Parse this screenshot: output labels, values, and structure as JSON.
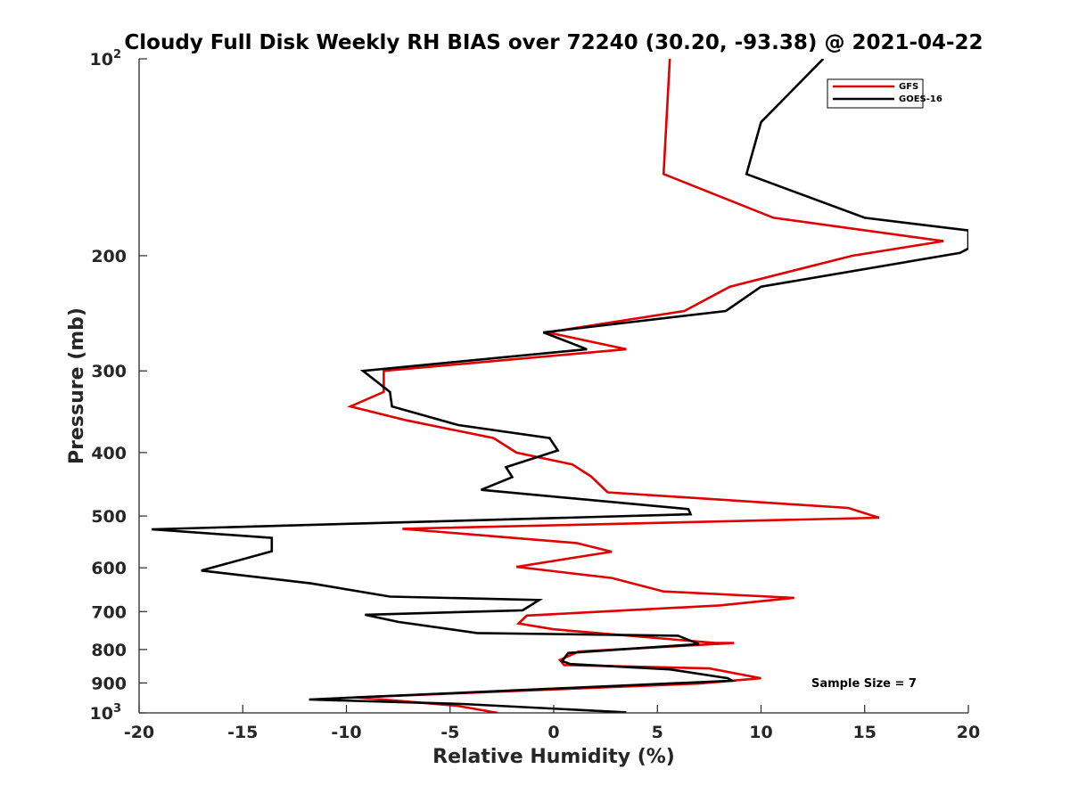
{
  "chart_data": {
    "type": "line",
    "title": "Cloudy Full Disk Weekly RH BIAS over 72240 (30.20, -93.38) @ 2021-04-22",
    "xlabel": "Relative Humidity (%)",
    "ylabel": "Pressure (mb)",
    "xlim": [
      -20,
      20
    ],
    "ylim": [
      100,
      1000
    ],
    "yscale": "log",
    "x_ticks": [
      "-20",
      "-15",
      "-10",
      "-5",
      "0",
      "5",
      "10",
      "15",
      "20"
    ],
    "y_ticks": [
      {
        "value": 100,
        "label": "10",
        "sup": "2"
      },
      {
        "value": 200,
        "label": "200",
        "sup": ""
      },
      {
        "value": 300,
        "label": "300",
        "sup": ""
      },
      {
        "value": 400,
        "label": "400",
        "sup": ""
      },
      {
        "value": 500,
        "label": "500",
        "sup": ""
      },
      {
        "value": 600,
        "label": "600",
        "sup": ""
      },
      {
        "value": 700,
        "label": "700",
        "sup": ""
      },
      {
        "value": 800,
        "label": "800",
        "sup": ""
      },
      {
        "value": 900,
        "label": "900",
        "sup": ""
      },
      {
        "value": 1000,
        "label": "10",
        "sup": "3"
      }
    ],
    "legend_position": "top-right",
    "annotation": "Sample Size = 7",
    "series": [
      {
        "name": "GFS",
        "color": "#e00000",
        "points": [
          [
            5.6,
            100
          ],
          [
            5.3,
            150
          ],
          [
            10.6,
            175
          ],
          [
            18.8,
            190
          ],
          [
            14.4,
            200
          ],
          [
            8.5,
            223
          ],
          [
            6.3,
            243
          ],
          [
            -0.3,
            262
          ],
          [
            3.5,
            278
          ],
          [
            -8.2,
            300
          ],
          [
            -8.2,
            323
          ],
          [
            -9.8,
            340
          ],
          [
            -7.1,
            357
          ],
          [
            -2.9,
            380
          ],
          [
            -1.8,
            400
          ],
          [
            0.9,
            417
          ],
          [
            1.8,
            435
          ],
          [
            2.6,
            460
          ],
          [
            14.2,
            486
          ],
          [
            15.7,
            503
          ],
          [
            -7.3,
            523
          ],
          [
            1.1,
            550
          ],
          [
            2.8,
            567
          ],
          [
            -1.8,
            598
          ],
          [
            2.8,
            622
          ],
          [
            5.3,
            652
          ],
          [
            11.6,
            667
          ],
          [
            8.0,
            685
          ],
          [
            -1.3,
            710
          ],
          [
            -1.7,
            730
          ],
          [
            0.0,
            745
          ],
          [
            7.8,
            782
          ],
          [
            8.7,
            782
          ],
          [
            1.2,
            806
          ],
          [
            0.3,
            830
          ],
          [
            0.5,
            845
          ],
          [
            7.5,
            855
          ],
          [
            10.0,
            885
          ],
          [
            7.0,
            902
          ],
          [
            -9.5,
            947
          ],
          [
            -4.7,
            975
          ],
          [
            -2.7,
            1000
          ]
        ]
      },
      {
        "name": "GOES-16",
        "color": "#000000",
        "points": [
          [
            13.0,
            100
          ],
          [
            10.0,
            125
          ],
          [
            9.3,
            150
          ],
          [
            15.0,
            175
          ],
          [
            20.0,
            183
          ],
          [
            20.0,
            195
          ],
          [
            19.6,
            198
          ],
          [
            10.0,
            223
          ],
          [
            8.3,
            243
          ],
          [
            -0.5,
            262
          ],
          [
            1.6,
            278
          ],
          [
            -9.2,
            300
          ],
          [
            -7.9,
            323
          ],
          [
            -7.8,
            340
          ],
          [
            -4.6,
            363
          ],
          [
            -0.2,
            380
          ],
          [
            0.2,
            397
          ],
          [
            -2.3,
            421
          ],
          [
            -2.0,
            436
          ],
          [
            -3.5,
            456
          ],
          [
            6.5,
            488
          ],
          [
            6.6,
            497
          ],
          [
            -19.4,
            524
          ],
          [
            -13.6,
            540
          ],
          [
            -13.6,
            566
          ],
          [
            -17.0,
            606
          ],
          [
            -11.7,
            634
          ],
          [
            -7.9,
            664
          ],
          [
            -0.7,
            672
          ],
          [
            -1.5,
            697
          ],
          [
            -9.1,
            708
          ],
          [
            -7.5,
            726
          ],
          [
            -3.7,
            755
          ],
          [
            6.0,
            762
          ],
          [
            7.0,
            785
          ],
          [
            0.7,
            810
          ],
          [
            0.4,
            833
          ],
          [
            0.8,
            842
          ],
          [
            5.6,
            858
          ],
          [
            8.4,
            885
          ],
          [
            8.6,
            893
          ],
          [
            4.1,
            906
          ],
          [
            -11.8,
            954
          ],
          [
            -4.4,
            969
          ],
          [
            3.5,
            998
          ]
        ]
      }
    ]
  }
}
